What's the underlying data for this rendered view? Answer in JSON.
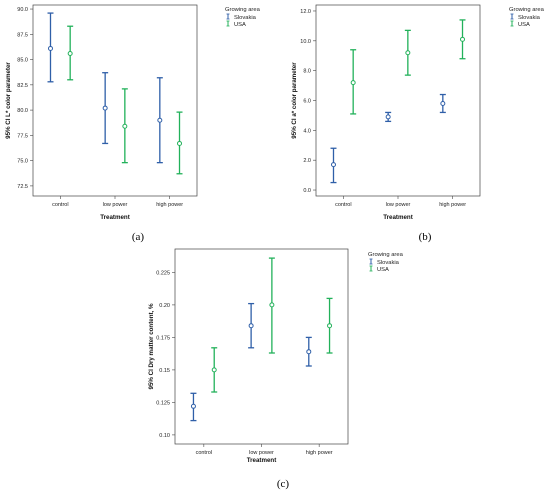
{
  "chart_data": [
    {
      "type": "errorbar",
      "panel_label": "(a)",
      "xlabel": "Treatment",
      "ylabel": "95% CI L* color parameter",
      "ylim": [
        71.5,
        90.4
      ],
      "yticks": [
        "72.5",
        "75.0",
        "77.5",
        "80.0",
        "82.5",
        "85.0",
        "87.5",
        "90.0"
      ],
      "categories": [
        "control",
        "low power",
        "high power"
      ],
      "legend_title": "Growing area",
      "legend_position": "top-right",
      "series": [
        {
          "name": "Slovakia",
          "color": "#2f5fa8",
          "mean": [
            86.1,
            80.2,
            79.0
          ],
          "lower": [
            82.8,
            76.7,
            74.8
          ],
          "upper": [
            89.6,
            83.7,
            83.2
          ]
        },
        {
          "name": "USA",
          "color": "#22b15a",
          "mean": [
            85.6,
            78.4,
            76.7
          ],
          "lower": [
            83.0,
            74.8,
            73.7
          ],
          "upper": [
            88.3,
            82.1,
            79.8
          ]
        }
      ]
    },
    {
      "type": "errorbar",
      "panel_label": "(b)",
      "xlabel": "Treatment",
      "ylabel": "95% CI a* color parameter",
      "ylim": [
        -0.4,
        12.4
      ],
      "yticks": [
        "0.0",
        "2.0",
        "4.0",
        "6.0",
        "8.0",
        "10.0",
        "12.0"
      ],
      "categories": [
        "control",
        "low power",
        "high power"
      ],
      "legend_title": "Growing area",
      "legend_position": "top-right",
      "series": [
        {
          "name": "Slovakia",
          "color": "#2f5fa8",
          "mean": [
            1.7,
            4.9,
            5.8
          ],
          "lower": [
            0.5,
            4.6,
            5.2
          ],
          "upper": [
            2.8,
            5.2,
            6.4
          ]
        },
        {
          "name": "USA",
          "color": "#22b15a",
          "mean": [
            7.2,
            9.2,
            10.1
          ],
          "lower": [
            5.1,
            7.7,
            8.8
          ],
          "upper": [
            9.4,
            10.7,
            11.4
          ]
        }
      ]
    },
    {
      "type": "errorbar",
      "panel_label": "(c)",
      "xlabel": "Treatment",
      "ylabel": "95% CI Dry matter content, %",
      "ylim": [
        0.093,
        0.243
      ],
      "yticks": [
        "0.10",
        "0.125",
        "0.15",
        "0.175",
        "0.20",
        "0.225"
      ],
      "categories": [
        "control",
        "low power",
        "high power"
      ],
      "legend_title": "Growing area",
      "legend_position": "top-right",
      "series": [
        {
          "name": "Slovakia",
          "color": "#2f5fa8",
          "mean": [
            0.122,
            0.184,
            0.164
          ],
          "lower": [
            0.111,
            0.167,
            0.153
          ],
          "upper": [
            0.132,
            0.201,
            0.175
          ]
        },
        {
          "name": "USA",
          "color": "#22b15a",
          "mean": [
            0.15,
            0.2,
            0.184
          ],
          "lower": [
            0.133,
            0.163,
            0.163
          ],
          "upper": [
            0.167,
            0.236,
            0.205
          ]
        }
      ]
    }
  ]
}
